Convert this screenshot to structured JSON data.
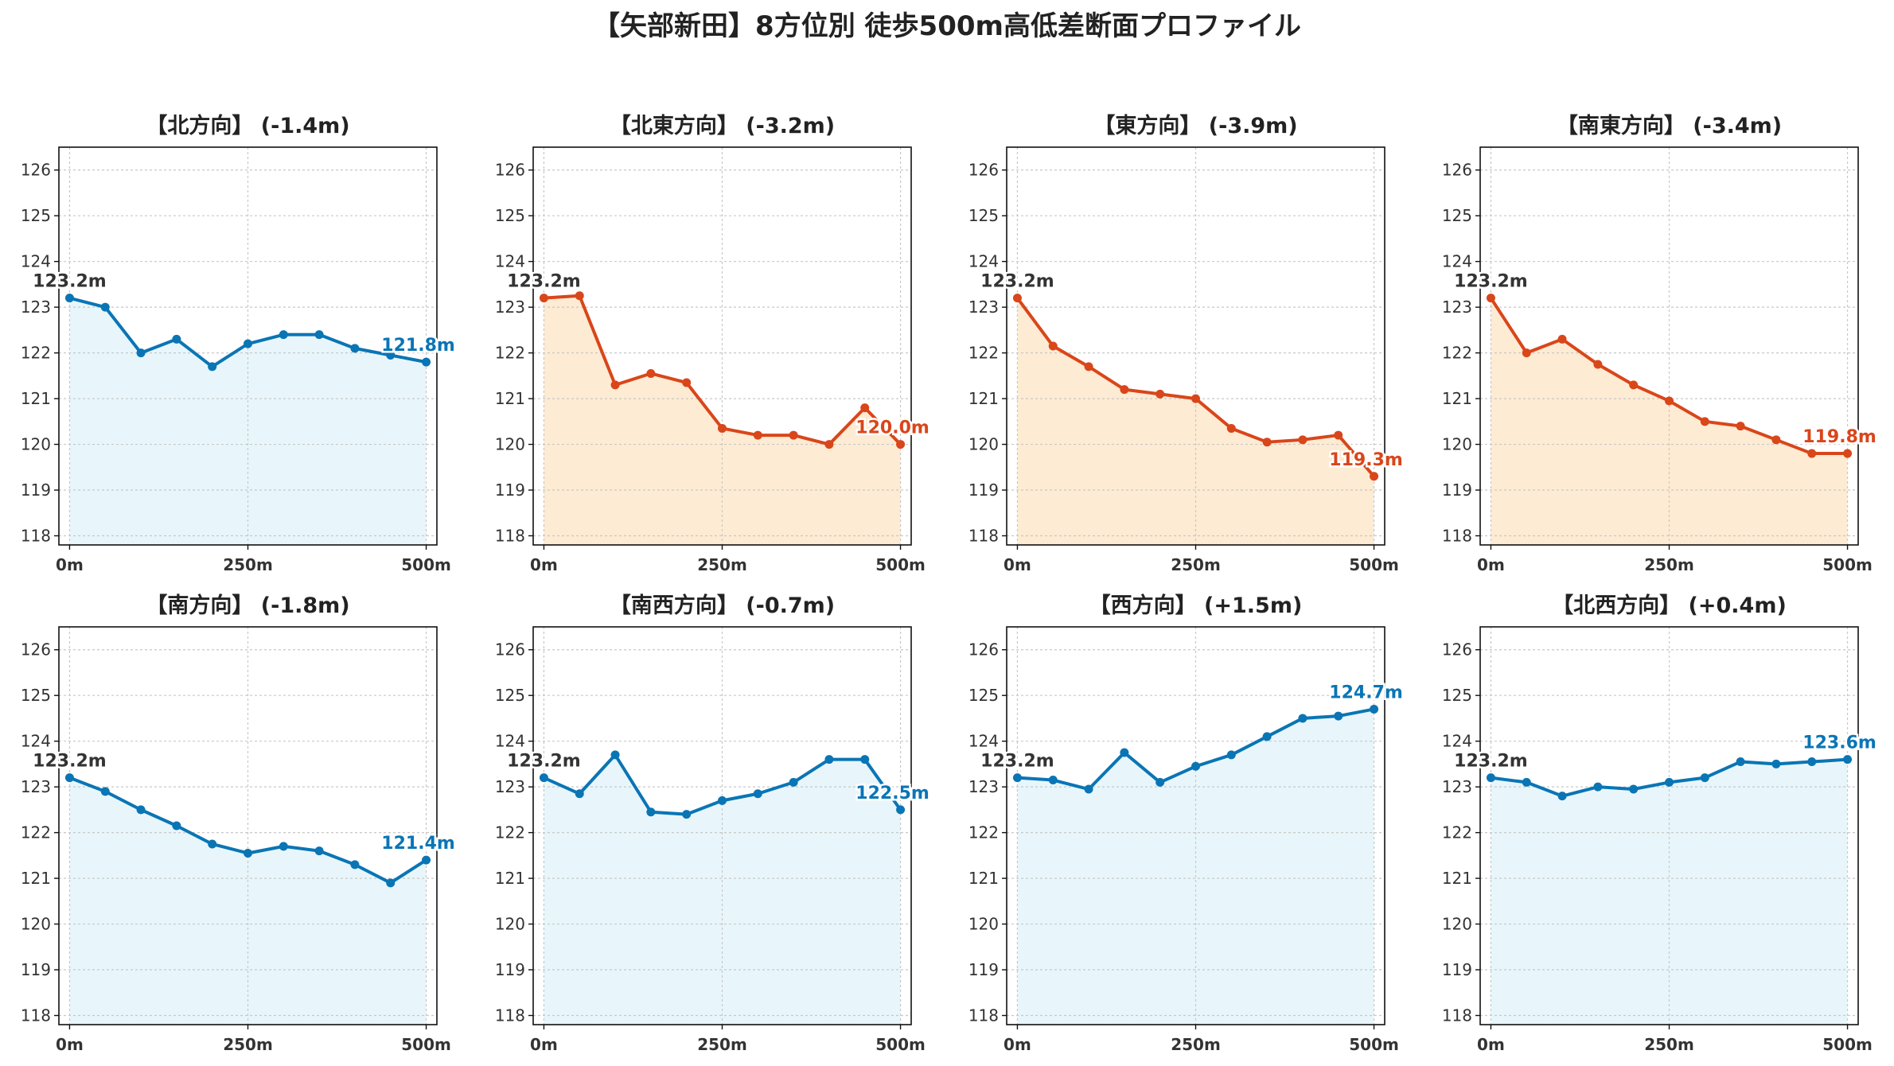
{
  "title": "【矢部新田】8方位別 徒歩500m高低差断面プロファイル",
  "colors": {
    "up": "#0a75b5",
    "up_fill": "#e8f6fb",
    "down": "#d9461a",
    "down_fill": "#fdebd3",
    "grid": "#c8c8c8"
  },
  "chart_data": [
    {
      "type": "area",
      "title": "【北方向】 (-1.4m)",
      "trend": "up",
      "x": [
        0,
        50,
        100,
        150,
        200,
        250,
        300,
        350,
        400,
        450,
        500
      ],
      "y": [
        123.2,
        123.0,
        122.0,
        122.3,
        121.7,
        122.2,
        122.4,
        122.4,
        122.1,
        121.95,
        121.8
      ],
      "x_ticks": [
        "0m",
        "250m",
        "500m"
      ],
      "y_ticks": [
        118,
        119,
        120,
        121,
        122,
        123,
        124,
        125,
        126
      ],
      "ylim": [
        117.8,
        126.5
      ],
      "xlim": [
        -15,
        515
      ],
      "start_label": "123.2m",
      "end_label": "121.8m",
      "grid": true
    },
    {
      "type": "area",
      "title": "【北東方向】 (-3.2m)",
      "trend": "down",
      "x": [
        0,
        50,
        100,
        150,
        200,
        250,
        300,
        350,
        400,
        450,
        500
      ],
      "y": [
        123.2,
        123.25,
        121.3,
        121.55,
        121.35,
        120.35,
        120.2,
        120.2,
        120.0,
        120.8,
        120.0
      ],
      "x_ticks": [
        "0m",
        "250m",
        "500m"
      ],
      "y_ticks": [
        118,
        119,
        120,
        121,
        122,
        123,
        124,
        125,
        126
      ],
      "ylim": [
        117.8,
        126.5
      ],
      "xlim": [
        -15,
        515
      ],
      "start_label": "123.2m",
      "end_label": "120.0m",
      "grid": true
    },
    {
      "type": "area",
      "title": "【東方向】 (-3.9m)",
      "trend": "down",
      "x": [
        0,
        50,
        100,
        150,
        200,
        250,
        300,
        350,
        400,
        450,
        500
      ],
      "y": [
        123.2,
        122.15,
        121.7,
        121.2,
        121.1,
        121.0,
        120.35,
        120.05,
        120.1,
        120.2,
        119.3
      ],
      "x_ticks": [
        "0m",
        "250m",
        "500m"
      ],
      "y_ticks": [
        118,
        119,
        120,
        121,
        122,
        123,
        124,
        125,
        126
      ],
      "ylim": [
        117.8,
        126.5
      ],
      "xlim": [
        -15,
        515
      ],
      "start_label": "123.2m",
      "end_label": "119.3m",
      "grid": true
    },
    {
      "type": "area",
      "title": "【南東方向】 (-3.4m)",
      "trend": "down",
      "x": [
        0,
        50,
        100,
        150,
        200,
        250,
        300,
        350,
        400,
        450,
        500
      ],
      "y": [
        123.2,
        122.0,
        122.3,
        121.75,
        121.3,
        120.95,
        120.5,
        120.4,
        120.1,
        119.8,
        119.8
      ],
      "x_ticks": [
        "0m",
        "250m",
        "500m"
      ],
      "y_ticks": [
        118,
        119,
        120,
        121,
        122,
        123,
        124,
        125,
        126
      ],
      "ylim": [
        117.8,
        126.5
      ],
      "xlim": [
        -15,
        515
      ],
      "start_label": "123.2m",
      "end_label": "119.8m",
      "grid": true
    },
    {
      "type": "area",
      "title": "【南方向】 (-1.8m)",
      "trend": "up",
      "x": [
        0,
        50,
        100,
        150,
        200,
        250,
        300,
        350,
        400,
        450,
        500
      ],
      "y": [
        123.2,
        122.9,
        122.5,
        122.15,
        121.75,
        121.55,
        121.7,
        121.6,
        121.3,
        120.9,
        121.4
      ],
      "x_ticks": [
        "0m",
        "250m",
        "500m"
      ],
      "y_ticks": [
        118,
        119,
        120,
        121,
        122,
        123,
        124,
        125,
        126
      ],
      "ylim": [
        117.8,
        126.5
      ],
      "xlim": [
        -15,
        515
      ],
      "start_label": "123.2m",
      "end_label": "121.4m",
      "grid": true
    },
    {
      "type": "area",
      "title": "【南西方向】 (-0.7m)",
      "trend": "up",
      "x": [
        0,
        50,
        100,
        150,
        200,
        250,
        300,
        350,
        400,
        450,
        500
      ],
      "y": [
        123.2,
        122.85,
        123.7,
        122.45,
        122.4,
        122.7,
        122.85,
        123.1,
        123.6,
        123.6,
        122.5
      ],
      "x_ticks": [
        "0m",
        "250m",
        "500m"
      ],
      "y_ticks": [
        118,
        119,
        120,
        121,
        122,
        123,
        124,
        125,
        126
      ],
      "ylim": [
        117.8,
        126.5
      ],
      "xlim": [
        -15,
        515
      ],
      "start_label": "123.2m",
      "end_label": "122.5m",
      "grid": true
    },
    {
      "type": "area",
      "title": "【西方向】 (+1.5m)",
      "trend": "up",
      "x": [
        0,
        50,
        100,
        150,
        200,
        250,
        300,
        350,
        400,
        450,
        500
      ],
      "y": [
        123.2,
        123.15,
        122.95,
        123.75,
        123.1,
        123.45,
        123.7,
        124.1,
        124.5,
        124.55,
        124.7
      ],
      "x_ticks": [
        "0m",
        "250m",
        "500m"
      ],
      "y_ticks": [
        118,
        119,
        120,
        121,
        122,
        123,
        124,
        125,
        126
      ],
      "ylim": [
        117.8,
        126.5
      ],
      "xlim": [
        -15,
        515
      ],
      "start_label": "123.2m",
      "end_label": "124.7m",
      "grid": true
    },
    {
      "type": "area",
      "title": "【北西方向】 (+0.4m)",
      "trend": "up",
      "x": [
        0,
        50,
        100,
        150,
        200,
        250,
        300,
        350,
        400,
        450,
        500
      ],
      "y": [
        123.2,
        123.1,
        122.8,
        123.0,
        122.95,
        123.1,
        123.2,
        123.55,
        123.5,
        123.55,
        123.6
      ],
      "x_ticks": [
        "0m",
        "250m",
        "500m"
      ],
      "y_ticks": [
        118,
        119,
        120,
        121,
        122,
        123,
        124,
        125,
        126
      ],
      "ylim": [
        117.8,
        126.5
      ],
      "xlim": [
        -15,
        515
      ],
      "start_label": "123.2m",
      "end_label": "123.6m",
      "grid": true
    }
  ]
}
